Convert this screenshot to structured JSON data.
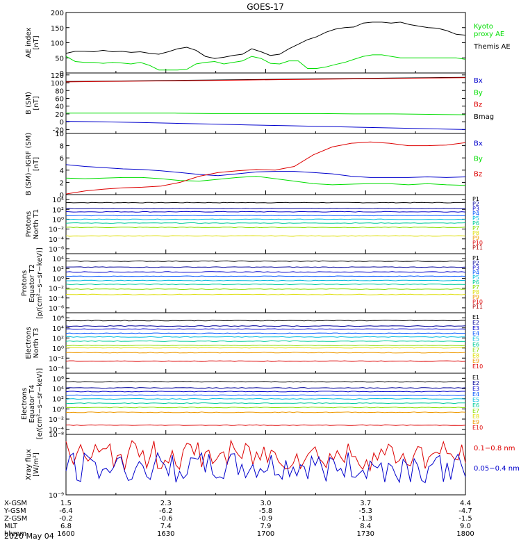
{
  "title": "GOES-17",
  "date_label": "2020 May 04",
  "colors": {
    "black": "#000000",
    "green": "#00dd00",
    "blue": "#0000cc",
    "red": "#dd0000",
    "navy": "#000099",
    "cyan": "#00bbdd",
    "teal": "#00cc99",
    "lime": "#88dd00",
    "yellow": "#dddd00",
    "orange": "#ee9900",
    "darkred": "#aa0000"
  },
  "ephemeris": {
    "row_labels": [
      "X-GSM",
      "Y-GSM",
      "Z-GSM",
      "MLT",
      "hhmm"
    ],
    "columns": [
      {
        "values": [
          "1.5",
          "-6.4",
          "-0.2",
          "6.8",
          "1600"
        ]
      },
      {
        "values": [
          "2.3",
          "-6.2",
          "-0.6",
          "7.4",
          "1630"
        ]
      },
      {
        "values": [
          "3.0",
          "-5.8",
          "-0.9",
          "7.9",
          "1700"
        ]
      },
      {
        "values": [
          "3.7",
          "-5.3",
          "-1.3",
          "8.4",
          "1730"
        ]
      },
      {
        "values": [
          "4.4",
          "-4.7",
          "-1.5",
          "9.0",
          "1800"
        ]
      }
    ]
  },
  "chart_data": [
    {
      "type": "line",
      "ylabel": "AE index\n[nT]",
      "ylim": [
        0,
        200
      ],
      "yticks": [
        "0",
        "50",
        "100",
        "150",
        "200"
      ],
      "log": false,
      "x_range": [
        1600,
        1800
      ],
      "legend": [
        {
          "name": "Kyoto\nproxy AE",
          "color": "#00dd00"
        },
        {
          "name": "Themis AE",
          "color": "#000000"
        }
      ],
      "series": [
        {
          "name": "Themis AE",
          "color": "#000000",
          "values": [
            65,
            72,
            72,
            70,
            75,
            70,
            72,
            68,
            70,
            65,
            62,
            70,
            80,
            85,
            75,
            55,
            48,
            52,
            58,
            62,
            80,
            70,
            58,
            62,
            80,
            95,
            110,
            120,
            135,
            145,
            150,
            152,
            165,
            168,
            168,
            165,
            168,
            160,
            155,
            150,
            148,
            140,
            128,
            125
          ]
        },
        {
          "name": "Kyoto proxy AE",
          "color": "#00dd00",
          "values": [
            55,
            38,
            35,
            35,
            32,
            35,
            33,
            30,
            35,
            25,
            10,
            10,
            10,
            12,
            30,
            35,
            38,
            30,
            35,
            40,
            55,
            48,
            32,
            30,
            40,
            40,
            15,
            15,
            20,
            28,
            35,
            45,
            55,
            60,
            60,
            55,
            50,
            50,
            50,
            50,
            50,
            50,
            50,
            45
          ]
        }
      ]
    },
    {
      "type": "line",
      "ylabel": "B (SM)\n[nT]",
      "ylim": [
        -30,
        125
      ],
      "yticks": [
        "-20",
        "0",
        "20",
        "40",
        "60",
        "80",
        "100",
        "120"
      ],
      "log": false,
      "legend": [
        {
          "name": "Bx",
          "color": "#0000cc"
        },
        {
          "name": "By",
          "color": "#00dd00"
        },
        {
          "name": "Bz",
          "color": "#dd0000"
        },
        {
          "name": "Bmag",
          "color": "#000000"
        }
      ],
      "series": [
        {
          "name": "Bmag",
          "color": "#000000",
          "values": [
            103,
            104,
            105,
            106,
            107,
            108,
            109,
            110,
            111,
            112,
            113,
            114
          ]
        },
        {
          "name": "Bz",
          "color": "#dd0000",
          "values": [
            102,
            103,
            104,
            105,
            106,
            107,
            108,
            109,
            110,
            111,
            112,
            113
          ]
        },
        {
          "name": "By",
          "color": "#00dd00",
          "values": [
            22,
            22,
            22,
            22,
            21,
            21,
            21,
            21,
            20,
            20,
            19,
            18
          ]
        },
        {
          "name": "Bx",
          "color": "#0000cc",
          "values": [
            1,
            0,
            -2,
            -4,
            -6,
            -8,
            -10,
            -12,
            -14,
            -16,
            -18,
            -20
          ]
        }
      ]
    },
    {
      "type": "line",
      "ylabel": "B (SM)−IGRF (SM)\n[nT]",
      "ylim": [
        0,
        10
      ],
      "yticks": [
        "0",
        "2",
        "4",
        "6",
        "8",
        "10"
      ],
      "log": false,
      "legend": [
        {
          "name": "Bx",
          "color": "#0000cc"
        },
        {
          "name": "By",
          "color": "#00dd00"
        },
        {
          "name": "Bz",
          "color": "#dd0000"
        }
      ],
      "series": [
        {
          "name": "Bx",
          "color": "#0000cc",
          "values": [
            4.9,
            4.6,
            4.4,
            4.2,
            4.1,
            3.9,
            3.6,
            3.3,
            3.1,
            3.4,
            3.7,
            3.8,
            3.8,
            3.6,
            3.4,
            3.0,
            2.8,
            2.8,
            2.8,
            2.9,
            2.8,
            2.9
          ]
        },
        {
          "name": "By",
          "color": "#00dd00",
          "values": [
            2.7,
            2.6,
            2.7,
            2.8,
            2.8,
            2.6,
            2.3,
            2.2,
            2.5,
            2.8,
            3.0,
            2.6,
            2.2,
            1.8,
            1.6,
            1.7,
            1.8,
            1.8,
            1.6,
            1.8,
            1.6,
            1.5
          ]
        },
        {
          "name": "Bz",
          "color": "#dd0000",
          "values": [
            0.1,
            0.6,
            0.9,
            1.1,
            1.2,
            1.4,
            2.0,
            3.0,
            3.6,
            3.9,
            4.1,
            4.0,
            4.6,
            6.5,
            7.8,
            8.4,
            8.6,
            8.4,
            8.0,
            8.0,
            8.1,
            8.5
          ]
        }
      ]
    },
    {
      "type": "line",
      "ylabel": "Protons\nNorth T1",
      "ylim": [
        -7,
        4
      ],
      "yticks": [
        "10⁻⁶",
        "10⁻⁴",
        "10⁻²",
        "10⁰",
        "10²",
        "10⁴"
      ],
      "log": true,
      "legend": [
        {
          "name": "P1"
        },
        {
          "name": "P2"
        },
        {
          "name": "P3"
        },
        {
          "name": "P4"
        },
        {
          "name": "P5"
        },
        {
          "name": "P6"
        },
        {
          "name": "P7"
        },
        {
          "name": "P8"
        },
        {
          "name": "P9"
        },
        {
          "name": "P10"
        },
        {
          "name": "P11"
        }
      ],
      "series": [
        {
          "name": "P1",
          "color": "#000000",
          "log_level": 2.5
        },
        {
          "name": "P2",
          "color": "#000099",
          "log_level": 1.4
        },
        {
          "name": "P3",
          "color": "#0000cc",
          "log_level": 0.8
        },
        {
          "name": "P4",
          "color": "#0055ff",
          "log_level": 0.1
        },
        {
          "name": "P5",
          "color": "#00bbdd",
          "log_level": -0.6
        },
        {
          "name": "P6",
          "color": "#00cc99",
          "log_level": -1.3
        },
        {
          "name": "P7",
          "color": "#88dd00",
          "log_level": -2.1
        },
        {
          "name": "P8",
          "color": "#dddd00",
          "log_level": -3.7
        }
      ]
    },
    {
      "type": "line",
      "ylabel": "Protons\nEquator T2\n[p/(cm²−s−sr−keV)]",
      "ylim": [
        -7,
        4
      ],
      "yticks": [
        "10⁻⁶",
        "10⁻⁴",
        "10⁻²",
        "10⁰",
        "10²",
        "10⁴"
      ],
      "log": true,
      "legend": [
        {
          "name": "P1"
        },
        {
          "name": "P2"
        },
        {
          "name": "P3"
        },
        {
          "name": "P4"
        },
        {
          "name": "P5"
        },
        {
          "name": "P6"
        },
        {
          "name": "P7"
        },
        {
          "name": "P8"
        },
        {
          "name": "P9"
        },
        {
          "name": "P10"
        },
        {
          "name": "P11"
        }
      ],
      "series": [
        {
          "name": "P1",
          "color": "#000000",
          "log_level": 2.6
        },
        {
          "name": "P2",
          "color": "#000099",
          "log_level": 1.5
        },
        {
          "name": "P3",
          "color": "#0000cc",
          "log_level": 0.6
        },
        {
          "name": "P4",
          "color": "#0055ff",
          "log_level": -0.2
        },
        {
          "name": "P5",
          "color": "#00bbdd",
          "log_level": -1.0
        },
        {
          "name": "P6",
          "color": "#00cc99",
          "log_level": -1.7
        },
        {
          "name": "P7",
          "color": "#88dd00",
          "log_level": -2.6
        },
        {
          "name": "P8",
          "color": "#dddd00",
          "log_level": -3.6
        }
      ]
    },
    {
      "type": "line",
      "ylabel": "Electrons\nNorth T3",
      "ylim": [
        -4,
        6
      ],
      "yticks": [
        "10⁻⁴",
        "10⁻²",
        "10⁰",
        "10²",
        "10⁴",
        "10⁶"
      ],
      "log": true,
      "legend": [
        {
          "name": "E1"
        },
        {
          "name": "E2"
        },
        {
          "name": "E3"
        },
        {
          "name": "E4"
        },
        {
          "name": "E5"
        },
        {
          "name": "E6"
        },
        {
          "name": "E7"
        },
        {
          "name": "E8"
        },
        {
          "name": "E9"
        },
        {
          "name": "E10"
        }
      ],
      "series": [
        {
          "name": "E1",
          "color": "#000000",
          "log_level": 4.7
        },
        {
          "name": "E2",
          "color": "#000099",
          "log_level": 3.8
        },
        {
          "name": "E3",
          "color": "#0000cc",
          "log_level": 3.3
        },
        {
          "name": "E4",
          "color": "#0055ff",
          "log_level": 2.6
        },
        {
          "name": "E5",
          "color": "#00bbdd",
          "log_level": 2.0
        },
        {
          "name": "E6",
          "color": "#00cc99",
          "log_level": 1.3
        },
        {
          "name": "E7",
          "color": "#88dd00",
          "log_level": 0.6
        },
        {
          "name": "E8",
          "color": "#dddd00",
          "log_level": 0.2
        },
        {
          "name": "E9",
          "color": "#ee9900",
          "log_level": -0.6
        },
        {
          "name": "E10",
          "color": "#dd0000",
          "log_level": -2.0
        }
      ]
    },
    {
      "type": "line",
      "ylabel": "Electrons\nEquator T4\n[e/(cm²−s−sr−keV)]",
      "ylim": [
        -4,
        6
      ],
      "yticks": [
        "10⁻⁴",
        "10⁻²",
        "10⁰",
        "10²",
        "10⁴",
        "10⁶"
      ],
      "log": true,
      "legend": [
        {
          "name": "E1"
        },
        {
          "name": "E2"
        },
        {
          "name": "E3"
        },
        {
          "name": "E4"
        },
        {
          "name": "E5"
        },
        {
          "name": "E6"
        },
        {
          "name": "E7"
        },
        {
          "name": "E8"
        },
        {
          "name": "E9"
        },
        {
          "name": "E10"
        }
      ],
      "series": [
        {
          "name": "E1",
          "color": "#000000",
          "log_level": 4.6
        },
        {
          "name": "E2",
          "color": "#000099",
          "log_level": 3.6
        },
        {
          "name": "E3",
          "color": "#0000cc",
          "log_level": 3.0
        },
        {
          "name": "E4",
          "color": "#0055ff",
          "log_level": 2.4
        },
        {
          "name": "E5",
          "color": "#00bbdd",
          "log_level": 1.8
        },
        {
          "name": "E6",
          "color": "#00cc99",
          "log_level": 1.1
        },
        {
          "name": "E7",
          "color": "#88dd00",
          "log_level": 0.4
        },
        {
          "name": "E8",
          "color": "#ee9900",
          "log_level": -0.4
        },
        {
          "name": "E9",
          "color": "#dd0000",
          "log_level": -2.5
        }
      ]
    },
    {
      "type": "line",
      "ylabel": "Xray flux\n[W/m²]",
      "ylim": [
        -9,
        -8
      ],
      "yticks": [
        "10⁻⁹",
        "10⁻⁸"
      ],
      "log": true,
      "legend": [
        {
          "name": "0.1−0.8 nm",
          "color": "#dd0000"
        },
        {
          "name": "0.05−0.4 nm",
          "color": "#0000cc"
        }
      ],
      "series": [
        {
          "name": "0.1−0.8 nm",
          "color": "#dd0000",
          "log_level": -8.35
        },
        {
          "name": "0.05−0.4 nm",
          "color": "#0000cc",
          "log_level": -8.55
        }
      ]
    }
  ]
}
